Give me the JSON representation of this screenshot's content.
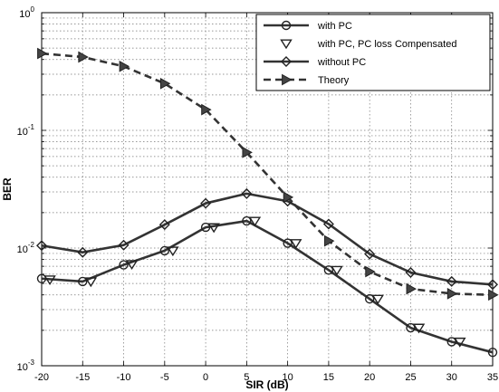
{
  "chart_data": {
    "type": "line",
    "xlabel": "SIR (dB)",
    "ylabel": "BER",
    "x": [
      -20,
      -15,
      -10,
      -5,
      0,
      5,
      10,
      15,
      20,
      25,
      30,
      35
    ],
    "xlim": [
      -20,
      35
    ],
    "ylim": [
      0.001,
      1
    ],
    "yscale": "log",
    "grid": true,
    "legend_position": "top-right",
    "x_ticks": [
      "-20",
      "-15",
      "-10",
      "-5",
      "0",
      "5",
      "10",
      "15",
      "20",
      "25",
      "30",
      "35"
    ],
    "y_ticks": [
      {
        "base": "10",
        "exp": "0",
        "value": 1
      },
      {
        "base": "10",
        "exp": "-1",
        "value": 0.1
      },
      {
        "base": "10",
        "exp": "-2",
        "value": 0.01
      },
      {
        "base": "10",
        "exp": "-3",
        "value": 0.001
      }
    ],
    "series": [
      {
        "name": "with PC",
        "marker": "circle",
        "line": "solid",
        "x": [
          -20,
          -15,
          -10,
          -5,
          0,
          5,
          10,
          15,
          20,
          25,
          30,
          35
        ],
        "values": [
          0.0055,
          0.0052,
          0.0072,
          0.0095,
          0.015,
          0.017,
          0.011,
          0.0065,
          0.0037,
          0.0021,
          0.0016,
          0.0013
        ]
      },
      {
        "name": "with PC, PC loss Compensated",
        "marker": "triangle-down",
        "line": "none",
        "x": [
          -19,
          -14,
          -9,
          -4,
          1,
          6,
          11,
          16,
          21,
          26,
          31
        ],
        "values": [
          0.0054,
          0.0052,
          0.0073,
          0.0095,
          0.015,
          0.017,
          0.011,
          0.0065,
          0.0037,
          0.0021,
          0.0016
        ]
      },
      {
        "name": "without PC",
        "marker": "diamond",
        "line": "solid",
        "x": [
          -20,
          -15,
          -10,
          -5,
          0,
          5,
          10,
          15,
          20,
          25,
          30,
          35
        ],
        "values": [
          0.0105,
          0.0092,
          0.0106,
          0.0158,
          0.024,
          0.029,
          0.025,
          0.016,
          0.0089,
          0.0062,
          0.0052,
          0.0049
        ]
      },
      {
        "name": "Theory",
        "marker": "triangle-right",
        "line": "dashed",
        "x": [
          -20,
          -15,
          -10,
          -5,
          0,
          5,
          10,
          15,
          20,
          25,
          30,
          35
        ],
        "values": [
          0.45,
          0.42,
          0.35,
          0.25,
          0.15,
          0.065,
          0.027,
          0.0115,
          0.0063,
          0.0045,
          0.0041,
          0.004
        ]
      }
    ]
  }
}
